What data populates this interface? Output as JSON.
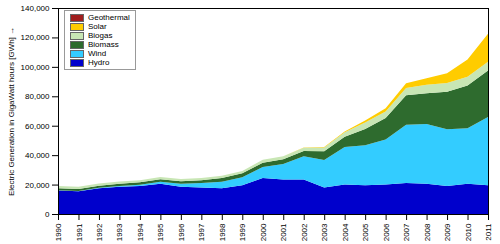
{
  "chart_data": {
    "type": "area",
    "stacked": true,
    "ylabel": "Electric Generation in GigaWatt hours [GWh]",
    "x": [
      1990,
      1991,
      1992,
      1993,
      1994,
      1995,
      1996,
      1997,
      1998,
      1999,
      2000,
      2001,
      2002,
      2003,
      2004,
      2005,
      2006,
      2007,
      2008,
      2009,
      2010,
      2011
    ],
    "series": [
      {
        "name": "Hydro",
        "color": "#0000cc",
        "values": [
          16000,
          15500,
          17500,
          18500,
          19000,
          20500,
          18500,
          18000,
          17500,
          19500,
          24500,
          23500,
          23500,
          18000,
          20000,
          19500,
          20000,
          21000,
          20500,
          19000,
          20500,
          19500
        ]
      },
      {
        "name": "Wind",
        "color": "#33ccff",
        "values": [
          70,
          100,
          280,
          600,
          900,
          1500,
          2000,
          3000,
          4500,
          5500,
          7500,
          10500,
          15800,
          18700,
          25500,
          27200,
          30700,
          39700,
          40600,
          38600,
          37800,
          46500
        ]
      },
      {
        "name": "Biomass",
        "color": "#2e6b2e",
        "values": [
          1400,
          1400,
          1500,
          1500,
          1600,
          1700,
          1800,
          1900,
          2500,
          2700,
          2800,
          3200,
          3500,
          6000,
          7000,
          11000,
          14500,
          20000,
          21000,
          25500,
          29000,
          31500
        ]
      },
      {
        "name": "Biogas",
        "color": "#c8e6b4",
        "values": [
          1500,
          1500,
          1500,
          1500,
          1500,
          1500,
          1500,
          1500,
          1500,
          1500,
          2000,
          2000,
          2200,
          2500,
          3000,
          4500,
          4500,
          5000,
          5800,
          6000,
          6000,
          6000
        ]
      },
      {
        "name": "Solar",
        "color": "#ffcc00",
        "values": [
          1,
          2,
          3,
          3,
          7,
          7,
          12,
          18,
          35,
          30,
          60,
          76,
          160,
          310,
          560,
          1300,
          2200,
          3100,
          4400,
          6600,
          11700,
          19000
        ]
      },
      {
        "name": "Geothermal",
        "color": "#a01e1e",
        "values": [
          0,
          0,
          0,
          0,
          0,
          0,
          0,
          0,
          0,
          0,
          0,
          0,
          0,
          0,
          0.2,
          0.2,
          0.4,
          0.4,
          18,
          19,
          28,
          19
        ]
      }
    ],
    "xlim": [
      1990,
      2011
    ],
    "xticks": [
      1990,
      1991,
      1992,
      1993,
      1994,
      1995,
      1996,
      1997,
      1998,
      1999,
      2000,
      2001,
      2002,
      2003,
      2004,
      2005,
      2006,
      2007,
      2008,
      2009,
      2010,
      2011
    ],
    "ylim": [
      0,
      140000
    ],
    "yticks": [
      0,
      {
        "value": 20000,
        "label": "20,000"
      },
      {
        "value": 40000,
        "label": "40,000"
      },
      {
        "value": 60000,
        "label": "60,000"
      },
      {
        "value": 80000,
        "label": "80,000"
      },
      {
        "value": 100000,
        "label": "100,000"
      },
      {
        "value": 120000,
        "label": "120,000"
      },
      {
        "value": 140000,
        "label": "140,000"
      }
    ],
    "legend": "top-left",
    "grid": false
  }
}
